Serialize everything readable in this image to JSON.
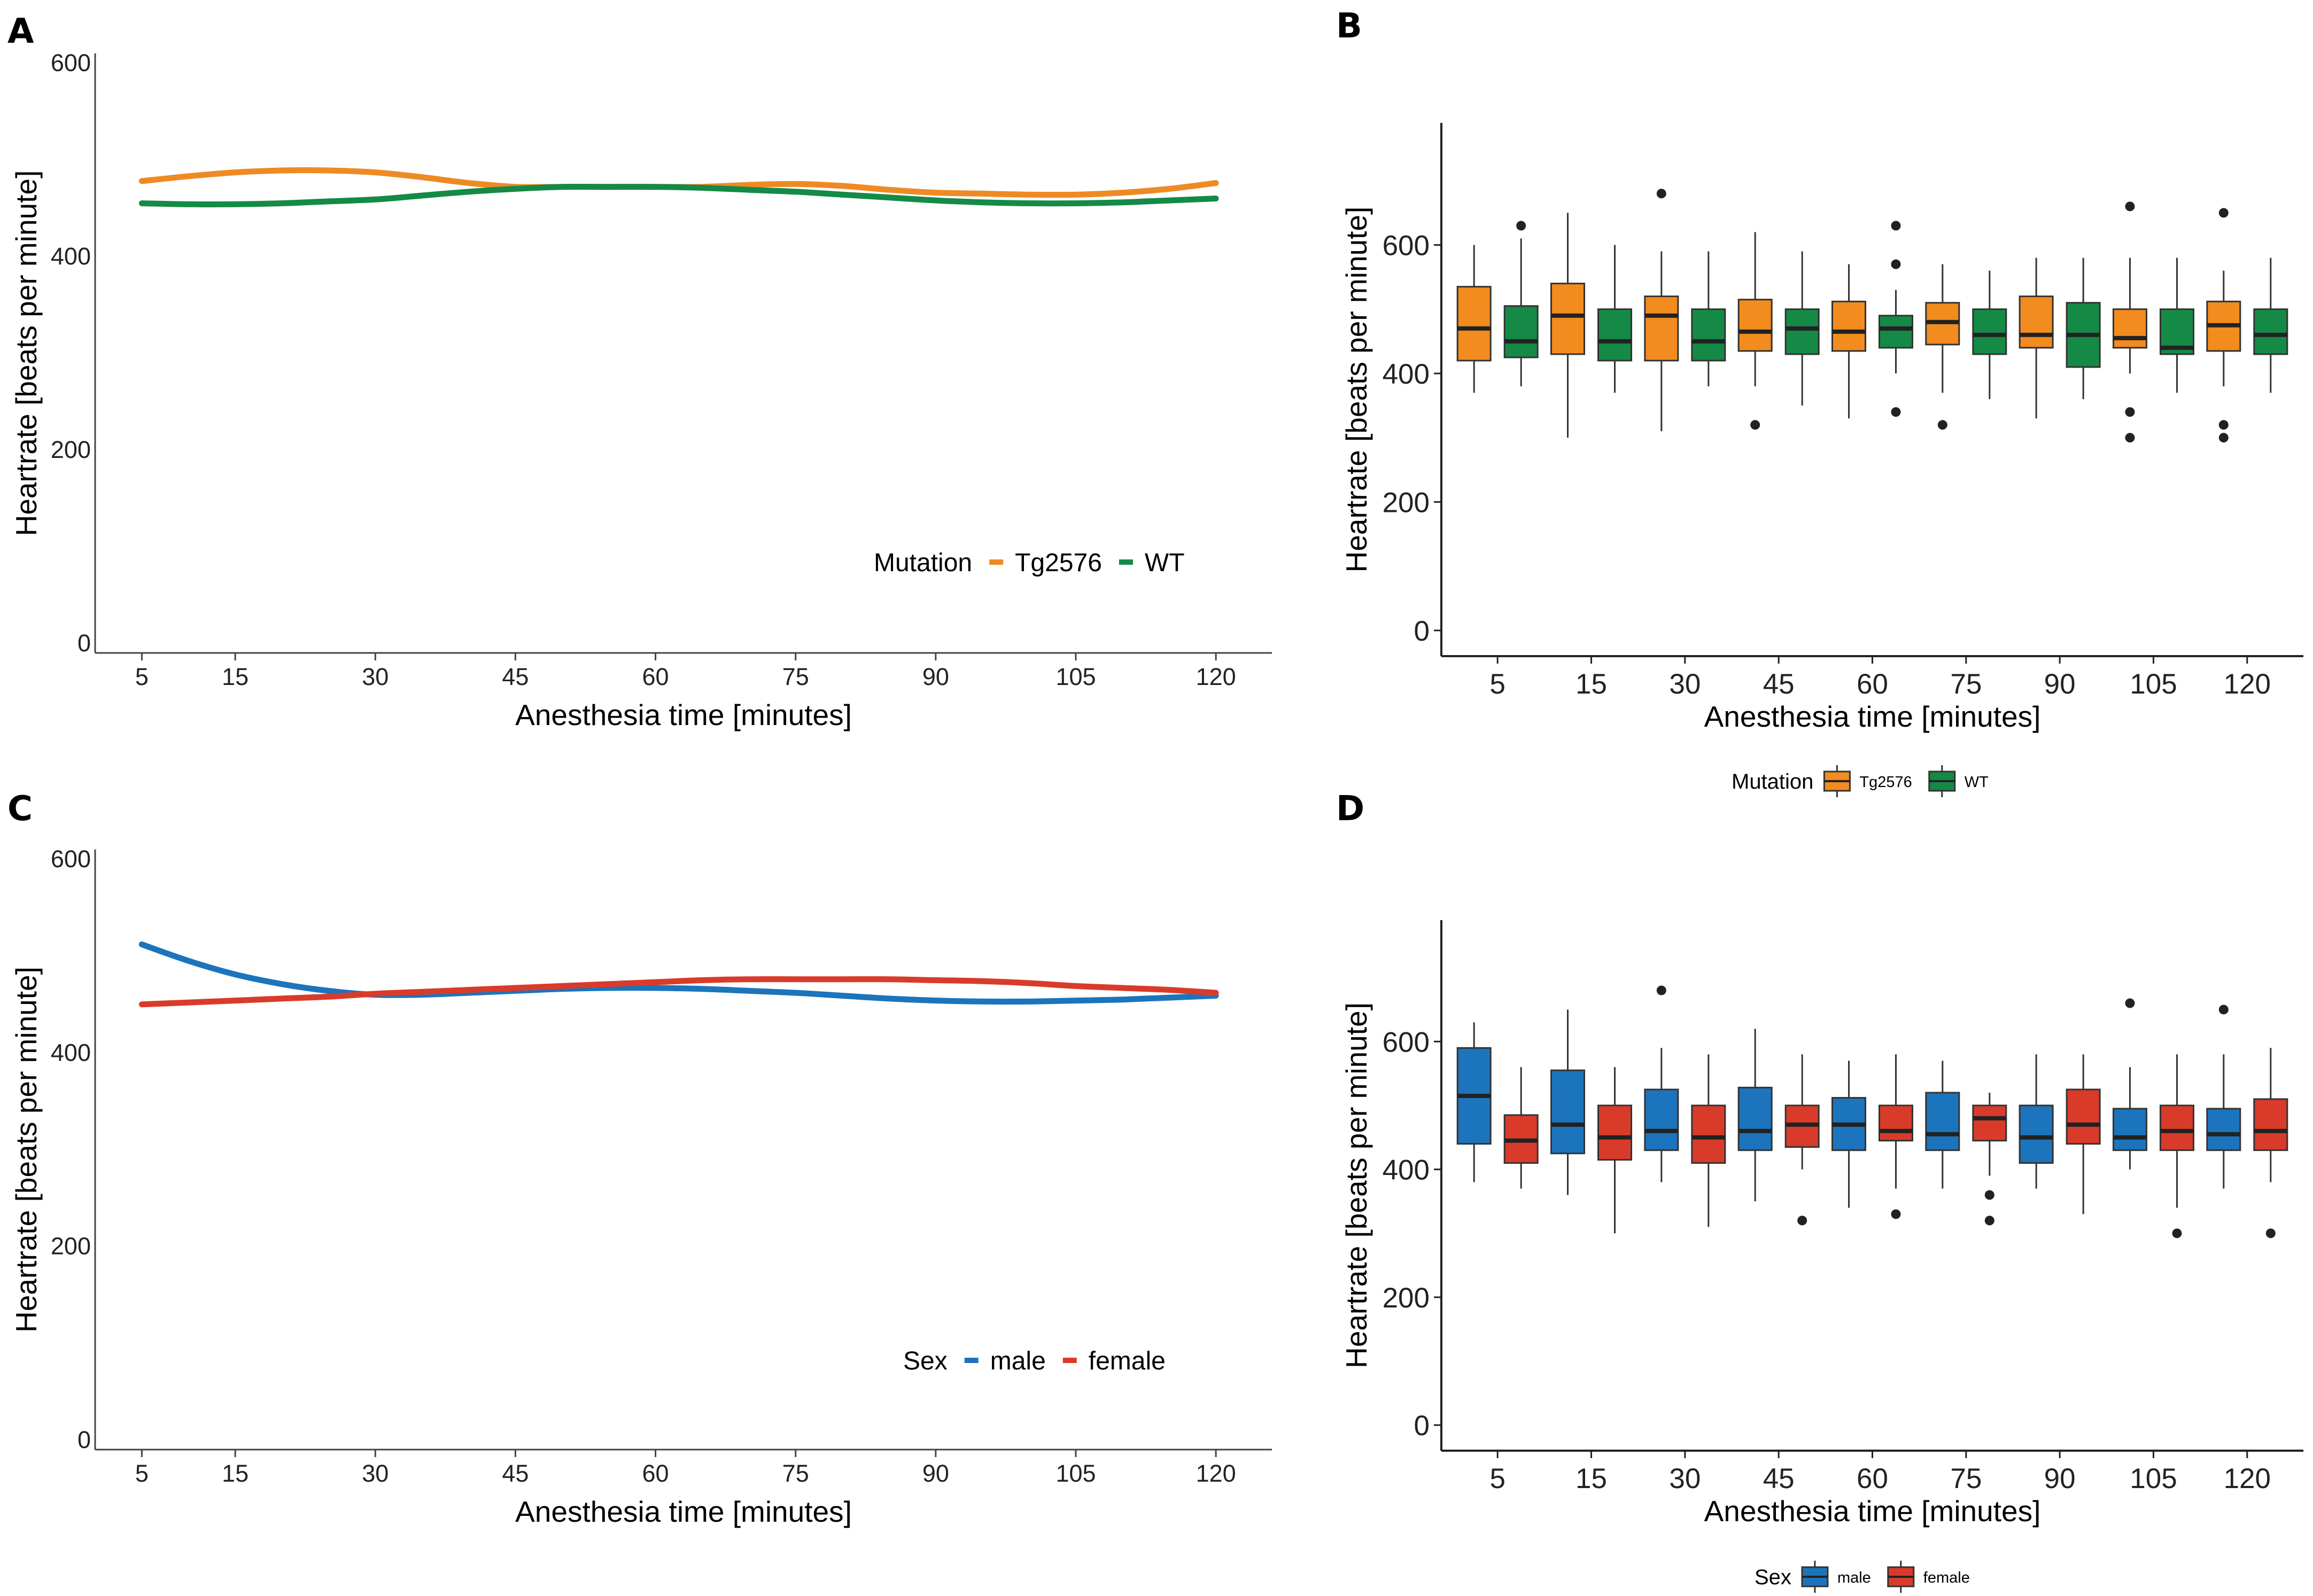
{
  "chart_data": [
    {
      "panel": "A",
      "type": "line",
      "xlabel": "Anesthesia time [minutes]",
      "ylabel": "Heartrate [beats per minute]",
      "x_ticks": [
        5,
        15,
        30,
        45,
        60,
        75,
        90,
        105,
        120
      ],
      "y_ticks": [
        0,
        200,
        400,
        600
      ],
      "xlim": [
        0,
        126
      ],
      "ylim": [
        -10,
        610
      ],
      "legend": {
        "title": "Mutation",
        "entries": [
          "Tg2576",
          "WT"
        ],
        "position": "bottom-right"
      },
      "series": [
        {
          "name": "Tg2576",
          "color": "#EE8A24",
          "x": [
            5,
            10,
            15,
            20,
            25,
            30,
            35,
            40,
            45,
            50,
            55,
            60,
            65,
            70,
            75,
            80,
            85,
            90,
            95,
            100,
            105,
            110,
            115,
            120
          ],
          "values": [
            478,
            483,
            487,
            489,
            489,
            487,
            482,
            476,
            472,
            472,
            472,
            472,
            472,
            474,
            475,
            473,
            469,
            466,
            465,
            464,
            464,
            466,
            470,
            476
          ]
        },
        {
          "name": "WT",
          "color": "#148A46",
          "x": [
            5,
            10,
            15,
            20,
            25,
            30,
            35,
            40,
            45,
            50,
            55,
            60,
            65,
            70,
            75,
            80,
            85,
            90,
            95,
            100,
            105,
            110,
            115,
            120
          ],
          "values": [
            455,
            454,
            454,
            455,
            457,
            459,
            463,
            467,
            470,
            472,
            472,
            472,
            471,
            469,
            467,
            464,
            461,
            458,
            456,
            455,
            455,
            456,
            458,
            460
          ]
        }
      ]
    },
    {
      "panel": "B",
      "type": "box",
      "xlabel": "Anesthesia time [minutes]",
      "ylabel": "Heartrate [beats per minute]",
      "categories": [
        "5",
        "15",
        "30",
        "45",
        "60",
        "75",
        "90",
        "105",
        "120"
      ],
      "y_ticks": [
        0,
        200,
        400,
        600
      ],
      "ylim": [
        -40,
        790
      ],
      "legend": {
        "title": "Mutation",
        "entries": [
          "Tg2576",
          "WT"
        ],
        "position": "bottom"
      },
      "series": [
        {
          "name": "Tg2576",
          "color": "#F28C1E",
          "boxes": [
            {
              "whisker_low": 370,
              "q1": 420,
              "median": 470,
              "q3": 535,
              "whisker_high": 600,
              "outliers": []
            },
            {
              "whisker_low": 300,
              "q1": 430,
              "median": 490,
              "q3": 540,
              "whisker_high": 650,
              "outliers": []
            },
            {
              "whisker_low": 310,
              "q1": 420,
              "median": 490,
              "q3": 520,
              "whisker_high": 590,
              "outliers": [
                680
              ]
            },
            {
              "whisker_low": 380,
              "q1": 435,
              "median": 465,
              "q3": 515,
              "whisker_high": 620,
              "outliers": [
                320
              ]
            },
            {
              "whisker_low": 330,
              "q1": 435,
              "median": 465,
              "q3": 512,
              "whisker_high": 570,
              "outliers": []
            },
            {
              "whisker_low": 370,
              "q1": 445,
              "median": 480,
              "q3": 510,
              "whisker_high": 570,
              "outliers": [
                320
              ]
            },
            {
              "whisker_low": 330,
              "q1": 440,
              "median": 460,
              "q3": 520,
              "whisker_high": 580,
              "outliers": []
            },
            {
              "whisker_low": 400,
              "q1": 440,
              "median": 455,
              "q3": 500,
              "whisker_high": 580,
              "outliers": [
                660,
                340,
                300
              ]
            },
            {
              "whisker_low": 380,
              "q1": 435,
              "median": 475,
              "q3": 512,
              "whisker_high": 560,
              "outliers": [
                650,
                320,
                300
              ]
            }
          ]
        },
        {
          "name": "WT",
          "color": "#148A46",
          "boxes": [
            {
              "whisker_low": 380,
              "q1": 425,
              "median": 450,
              "q3": 505,
              "whisker_high": 610,
              "outliers": [
                630
              ]
            },
            {
              "whisker_low": 370,
              "q1": 420,
              "median": 450,
              "q3": 500,
              "whisker_high": 600,
              "outliers": []
            },
            {
              "whisker_low": 380,
              "q1": 420,
              "median": 450,
              "q3": 500,
              "whisker_high": 590,
              "outliers": []
            },
            {
              "whisker_low": 350,
              "q1": 430,
              "median": 470,
              "q3": 500,
              "whisker_high": 590,
              "outliers": []
            },
            {
              "whisker_low": 400,
              "q1": 440,
              "median": 470,
              "q3": 490,
              "whisker_high": 530,
              "outliers": [
                630,
                570,
                340
              ]
            },
            {
              "whisker_low": 360,
              "q1": 430,
              "median": 460,
              "q3": 500,
              "whisker_high": 560,
              "outliers": []
            },
            {
              "whisker_low": 360,
              "q1": 410,
              "median": 460,
              "q3": 510,
              "whisker_high": 580,
              "outliers": []
            },
            {
              "whisker_low": 370,
              "q1": 430,
              "median": 440,
              "q3": 500,
              "whisker_high": 580,
              "outliers": []
            },
            {
              "whisker_low": 370,
              "q1": 430,
              "median": 460,
              "q3": 500,
              "whisker_high": 580,
              "outliers": []
            }
          ]
        }
      ]
    },
    {
      "panel": "C",
      "type": "line",
      "xlabel": "Anesthesia time [minutes]",
      "ylabel": "Heartrate [beats per minute]",
      "x_ticks": [
        5,
        15,
        30,
        45,
        60,
        75,
        90,
        105,
        120
      ],
      "y_ticks": [
        0,
        200,
        400,
        600
      ],
      "xlim": [
        0,
        126
      ],
      "ylim": [
        -10,
        610
      ],
      "legend": {
        "title": "Sex",
        "entries": [
          "male",
          "female"
        ],
        "position": "bottom-right"
      },
      "series": [
        {
          "name": "male",
          "color": "#1C74BC",
          "x": [
            5,
            10,
            15,
            20,
            25,
            30,
            35,
            40,
            45,
            50,
            55,
            60,
            65,
            70,
            75,
            80,
            85,
            90,
            95,
            100,
            105,
            110,
            115,
            120
          ],
          "values": [
            512,
            495,
            481,
            471,
            464,
            460,
            460,
            462,
            464,
            466,
            467,
            467,
            466,
            464,
            462,
            459,
            456,
            454,
            453,
            453,
            454,
            455,
            457,
            459
          ]
        },
        {
          "name": "female",
          "color": "#D93B2B",
          "x": [
            5,
            10,
            15,
            20,
            25,
            30,
            35,
            40,
            45,
            50,
            55,
            60,
            65,
            70,
            75,
            80,
            85,
            90,
            95,
            100,
            105,
            110,
            115,
            120
          ],
          "values": [
            450,
            452,
            454,
            456,
            458,
            461,
            463,
            465,
            467,
            469,
            471,
            473,
            475,
            476,
            476,
            476,
            476,
            475,
            474,
            472,
            469,
            467,
            465,
            462
          ]
        }
      ]
    },
    {
      "panel": "D",
      "type": "box",
      "xlabel": "Anesthesia time [minutes]",
      "ylabel": "Heartrate [beats per minute]",
      "categories": [
        "5",
        "15",
        "30",
        "45",
        "60",
        "75",
        "90",
        "105",
        "120"
      ],
      "y_ticks": [
        0,
        200,
        400,
        600
      ],
      "ylim": [
        -40,
        790
      ],
      "legend": {
        "title": "Sex",
        "entries": [
          "male",
          "female"
        ],
        "position": "bottom"
      },
      "series": [
        {
          "name": "male",
          "color": "#1C74BC",
          "boxes": [
            {
              "whisker_low": 380,
              "q1": 440,
              "median": 515,
              "q3": 590,
              "whisker_high": 630,
              "outliers": []
            },
            {
              "whisker_low": 360,
              "q1": 425,
              "median": 470,
              "q3": 555,
              "whisker_high": 650,
              "outliers": []
            },
            {
              "whisker_low": 380,
              "q1": 430,
              "median": 460,
              "q3": 525,
              "whisker_high": 590,
              "outliers": [
                680
              ]
            },
            {
              "whisker_low": 350,
              "q1": 430,
              "median": 460,
              "q3": 528,
              "whisker_high": 620,
              "outliers": []
            },
            {
              "whisker_low": 340,
              "q1": 430,
              "median": 470,
              "q3": 512,
              "whisker_high": 570,
              "outliers": []
            },
            {
              "whisker_low": 370,
              "q1": 430,
              "median": 455,
              "q3": 520,
              "whisker_high": 570,
              "outliers": []
            },
            {
              "whisker_low": 370,
              "q1": 410,
              "median": 450,
              "q3": 500,
              "whisker_high": 580,
              "outliers": []
            },
            {
              "whisker_low": 400,
              "q1": 430,
              "median": 450,
              "q3": 495,
              "whisker_high": 560,
              "outliers": [
                660
              ]
            },
            {
              "whisker_low": 370,
              "q1": 430,
              "median": 455,
              "q3": 495,
              "whisker_high": 580,
              "outliers": [
                650
              ]
            }
          ]
        },
        {
          "name": "female",
          "color": "#D93B2B",
          "boxes": [
            {
              "whisker_low": 370,
              "q1": 410,
              "median": 445,
              "q3": 485,
              "whisker_high": 560,
              "outliers": []
            },
            {
              "whisker_low": 300,
              "q1": 415,
              "median": 450,
              "q3": 500,
              "whisker_high": 560,
              "outliers": []
            },
            {
              "whisker_low": 310,
              "q1": 410,
              "median": 450,
              "q3": 500,
              "whisker_high": 580,
              "outliers": []
            },
            {
              "whisker_low": 400,
              "q1": 435,
              "median": 470,
              "q3": 500,
              "whisker_high": 580,
              "outliers": [
                320
              ]
            },
            {
              "whisker_low": 370,
              "q1": 445,
              "median": 460,
              "q3": 500,
              "whisker_high": 580,
              "outliers": [
                330
              ]
            },
            {
              "whisker_low": 390,
              "q1": 445,
              "median": 480,
              "q3": 500,
              "whisker_high": 520,
              "outliers": [
                360,
                320
              ]
            },
            {
              "whisker_low": 330,
              "q1": 440,
              "median": 470,
              "q3": 525,
              "whisker_high": 580,
              "outliers": []
            },
            {
              "whisker_low": 340,
              "q1": 430,
              "median": 460,
              "q3": 500,
              "whisker_high": 580,
              "outliers": [
                300
              ]
            },
            {
              "whisker_low": 380,
              "q1": 430,
              "median": 460,
              "q3": 510,
              "whisker_high": 590,
              "outliers": [
                300
              ]
            }
          ]
        }
      ]
    }
  ]
}
